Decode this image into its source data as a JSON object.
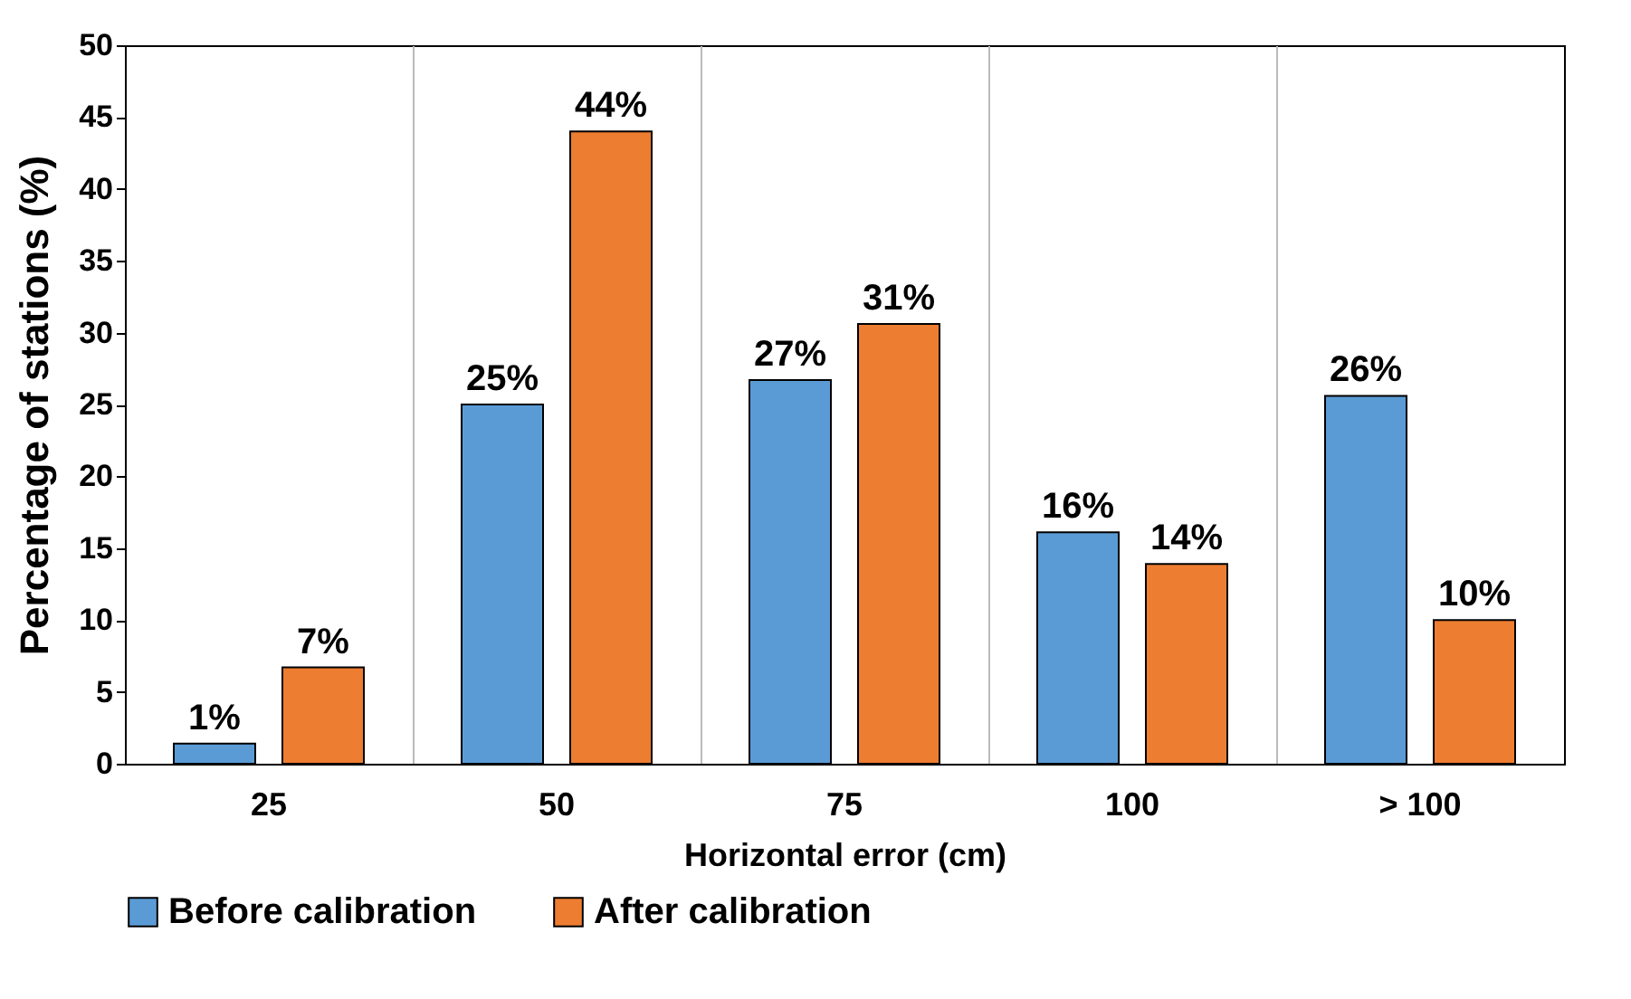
{
  "chart_data": {
    "type": "bar",
    "xlabel": "Horizontal error (cm)",
    "ylabel": "Percentage of stations (%)",
    "categories": [
      "25",
      "50",
      "75",
      "100",
      "> 100"
    ],
    "series": [
      {
        "name": "Before calibration",
        "color": "#5b9bd5",
        "values": [
          1.4,
          25,
          26.7,
          16.1,
          25.6
        ],
        "value_labels": [
          "1%",
          "25%",
          "27%",
          "16%",
          "26%"
        ]
      },
      {
        "name": "After calibration",
        "color": "#ed7d31",
        "values": [
          6.7,
          44,
          30.6,
          13.9,
          10
        ],
        "value_labels": [
          "7%",
          "44%",
          "31%",
          "14%",
          "10%"
        ]
      }
    ],
    "ylim": [
      0,
      50
    ],
    "yticks": [
      0,
      5,
      10,
      15,
      20,
      25,
      30,
      35,
      40,
      45,
      50
    ],
    "grid": "x",
    "legend": "bottom"
  }
}
